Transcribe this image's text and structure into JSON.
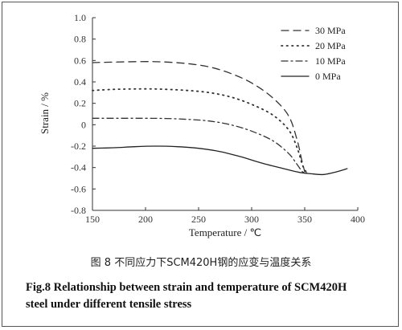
{
  "chart_data": {
    "type": "line",
    "xlabel": "Temperature / ℃",
    "ylabel": "Strain / %",
    "xlim": [
      150,
      400
    ],
    "ylim": [
      -0.8,
      1.0
    ],
    "x_ticks": [
      "150",
      "200",
      "250",
      "300",
      "350",
      "400"
    ],
    "y_ticks": [
      "1.0",
      "0.8",
      "0.6",
      "0.4",
      "0.2",
      "0",
      "-0.2",
      "-0.4",
      "-0.6",
      "-0.8"
    ],
    "grid": false,
    "legend_position": "top-right",
    "series": [
      {
        "name": "30 MPa",
        "line_style": "long-dash",
        "color": "#333333",
        "points": [
          [
            150,
            0.58
          ],
          [
            170,
            0.585
          ],
          [
            200,
            0.59
          ],
          [
            220,
            0.585
          ],
          [
            240,
            0.57
          ],
          [
            260,
            0.54
          ],
          [
            280,
            0.48
          ],
          [
            300,
            0.39
          ],
          [
            320,
            0.25
          ],
          [
            335,
            0.08
          ],
          [
            343,
            -0.15
          ],
          [
            347,
            -0.32
          ],
          [
            350,
            -0.44
          ]
        ]
      },
      {
        "name": "20 MPa",
        "line_style": "dotted",
        "color": "#333333",
        "points": [
          [
            150,
            0.32
          ],
          [
            170,
            0.33
          ],
          [
            200,
            0.335
          ],
          [
            220,
            0.33
          ],
          [
            240,
            0.32
          ],
          [
            260,
            0.3
          ],
          [
            280,
            0.26
          ],
          [
            300,
            0.19
          ],
          [
            320,
            0.09
          ],
          [
            335,
            -0.05
          ],
          [
            343,
            -0.22
          ],
          [
            348,
            -0.38
          ],
          [
            352,
            -0.45
          ]
        ]
      },
      {
        "name": "10 MPa",
        "line_style": "dash-dot",
        "color": "#333333",
        "points": [
          [
            150,
            0.06
          ],
          [
            170,
            0.06
          ],
          [
            200,
            0.06
          ],
          [
            220,
            0.058
          ],
          [
            240,
            0.05
          ],
          [
            260,
            0.035
          ],
          [
            280,
            0.0
          ],
          [
            300,
            -0.06
          ],
          [
            320,
            -0.15
          ],
          [
            335,
            -0.27
          ],
          [
            342,
            -0.36
          ],
          [
            348,
            -0.44
          ],
          [
            352,
            -0.45
          ]
        ]
      },
      {
        "name": "0 MPa",
        "line_style": "solid",
        "color": "#222222",
        "points": [
          [
            150,
            -0.22
          ],
          [
            170,
            -0.215
          ],
          [
            190,
            -0.205
          ],
          [
            210,
            -0.2
          ],
          [
            230,
            -0.205
          ],
          [
            250,
            -0.22
          ],
          [
            270,
            -0.25
          ],
          [
            290,
            -0.3
          ],
          [
            310,
            -0.36
          ],
          [
            330,
            -0.41
          ],
          [
            345,
            -0.445
          ],
          [
            358,
            -0.46
          ],
          [
            368,
            -0.465
          ],
          [
            380,
            -0.44
          ],
          [
            390,
            -0.41
          ]
        ]
      }
    ]
  },
  "caption": {
    "chinese": "图 8   不同应力下SCM420H钢的应变与温度关系",
    "english_line1": "Fig.8   Relationship between strain and temperature of SCM420H",
    "english_line2": "steel under different tensile stress"
  }
}
